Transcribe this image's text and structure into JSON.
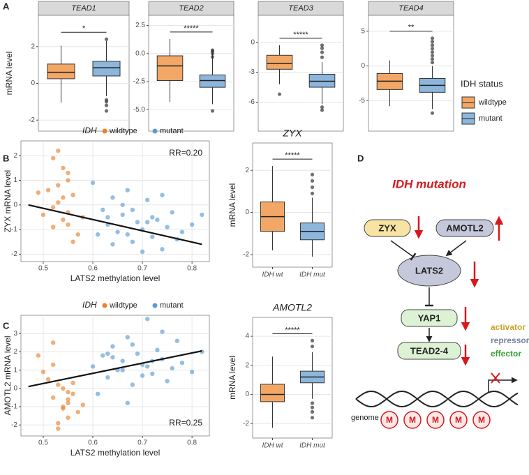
{
  "panel_labels": [
    "A",
    "B",
    "C",
    "D"
  ],
  "chart_data": [
    {
      "type": "boxplot_facets",
      "y_label": "mRNA level",
      "legend_title": "IDH status",
      "groups": [
        {
          "name": "wildtype",
          "color": "#F2A766"
        },
        {
          "name": "mutant",
          "color": "#8DB6DC"
        }
      ],
      "facets": [
        {
          "title": "TEAD1",
          "ylim": [
            -2.6,
            3.7
          ],
          "yticks": [
            -2,
            0,
            2
          ],
          "significance": "*",
          "boxes": [
            {
              "min": -1.05,
              "q1": 0.25,
              "median": 0.6,
              "q3": 1.05,
              "max": 2.05,
              "outliers": []
            },
            {
              "min": -0.7,
              "q1": 0.4,
              "median": 0.85,
              "q3": 1.2,
              "max": 2.3,
              "outliers": [
                2.4,
                -0.9,
                -1.0,
                -1.2,
                -1.5
              ]
            }
          ]
        },
        {
          "title": "TEAD2",
          "ylim": [
            -6.9,
            3.4
          ],
          "yticks": [
            {
              "value": -5,
              "label": "-5.0"
            },
            {
              "value": -2.5,
              "label": "-2.5"
            },
            {
              "value": 0,
              "label": "0.0"
            },
            {
              "value": 2.5,
              "label": "2.5"
            }
          ],
          "significance": "*****",
          "boxes": [
            {
              "min": -4.3,
              "q1": -2.4,
              "median": -1.1,
              "q3": -0.2,
              "max": 1.3,
              "outliers": []
            },
            {
              "min": -4.5,
              "q1": -3.0,
              "median": -2.4,
              "q3": -1.9,
              "max": 0.1,
              "outliers": [
                0.3,
                0.2,
                0,
                -0.3,
                -5.1
              ]
            }
          ]
        },
        {
          "title": "TEAD3",
          "ylim": [
            -8.9,
            2.7
          ],
          "yticks": [
            -6,
            -3,
            0
          ],
          "significance": "*****",
          "boxes": [
            {
              "min": -4.2,
              "q1": -2.7,
              "median": -2.1,
              "q3": -1.3,
              "max": -0.3,
              "outliers": [
                -5.2
              ]
            },
            {
              "min": -6.2,
              "q1": -4.5,
              "median": -3.9,
              "q3": -3.2,
              "max": -2.0,
              "outliers": [
                -0.3,
                -0.6,
                -1.0,
                -1.5,
                -6.5,
                -6.8
              ]
            }
          ]
        },
        {
          "title": "TEAD4",
          "ylim": [
            -9.4,
            7.3
          ],
          "yticks": [
            -5,
            0,
            5
          ],
          "significance": "**",
          "boxes": [
            {
              "min": -5.8,
              "q1": -3.4,
              "median": -2.2,
              "q3": -1.1,
              "max": 0.8,
              "outliers": []
            },
            {
              "min": -6.2,
              "q1": -3.8,
              "median": -2.8,
              "q3": -1.8,
              "max": 0,
              "outliers": [
                0.5,
                1,
                1.5,
                2,
                2.5,
                3,
                3.5,
                4,
                -6.8
              ]
            }
          ]
        }
      ]
    },
    {
      "type": "scatter",
      "legend_title": "IDH",
      "x_label": "LATS2 methylation level",
      "y_label": "ZYX mRNA level",
      "annotation": "RR=0.20",
      "xlim": [
        0.455,
        0.835
      ],
      "ylim": [
        -2.3,
        2.6
      ],
      "xticks": [
        0.5,
        0.6,
        0.7,
        0.8
      ],
      "yticks": [
        -2,
        -1,
        0,
        1,
        2
      ],
      "fit_line": {
        "x": [
          0.47,
          0.82
        ],
        "y": [
          0.0,
          -1.6
        ]
      },
      "series": [
        {
          "name": "wildtype",
          "color": "#E8822F",
          "x": [
            0.52,
            0.53,
            0.54,
            0.55,
            0.51,
            0.56,
            0.53,
            0.55,
            0.54,
            0.52,
            0.57,
            0.5,
            0.55,
            0.53,
            0.56,
            0.54,
            0.52,
            0.55,
            0.58,
            0.49
          ],
          "y": [
            1.9,
            2.2,
            1.5,
            1.0,
            0.6,
            0.4,
            0.1,
            -0.3,
            -0.6,
            -0.9,
            -1.2,
            -0.4,
            1.3,
            0.8,
            -1.5,
            0.3,
            -0.1,
            -0.8,
            -0.5,
            0.5
          ]
        },
        {
          "name": "mutant",
          "color": "#5B9BD5",
          "x": [
            0.6,
            0.62,
            0.63,
            0.64,
            0.65,
            0.66,
            0.67,
            0.68,
            0.69,
            0.7,
            0.71,
            0.72,
            0.73,
            0.74,
            0.75,
            0.76,
            0.77,
            0.78,
            0.8,
            0.82,
            0.61,
            0.64,
            0.66,
            0.68,
            0.7,
            0.72,
            0.74,
            0.63,
            0.67,
            0.71
          ],
          "y": [
            0.9,
            -0.2,
            -0.8,
            0.3,
            -1.1,
            -0.4,
            0.6,
            -1.5,
            -0.7,
            -1.0,
            0.2,
            -1.3,
            -0.6,
            -1.8,
            -0.9,
            -0.3,
            -1.4,
            -1.1,
            -0.8,
            -0.4,
            -1.2,
            -1.6,
            0.0,
            -0.2,
            -1.9,
            -0.5,
            0.4,
            -0.5,
            -1.2,
            -0.7
          ]
        }
      ]
    },
    {
      "type": "boxplot",
      "title": "ZYX",
      "y_label": "mRNA level",
      "categories": [
        "IDH wt",
        "IDH mut"
      ],
      "colors": [
        "#F2A766",
        "#8DB6DC"
      ],
      "ylim": [
        -2.6,
        3.3
      ],
      "yticks": [
        -2,
        0,
        2
      ],
      "significance": "*****",
      "boxes": [
        {
          "min": -1.8,
          "q1": -0.9,
          "median": -0.2,
          "q3": 0.5,
          "max": 2.2,
          "outliers": []
        },
        {
          "min": -2.1,
          "q1": -1.3,
          "median": -0.9,
          "q3": -0.5,
          "max": 0.7,
          "outliers": [
            1.8,
            1.5,
            1.2,
            0.9
          ]
        }
      ]
    },
    {
      "type": "scatter",
      "legend_title": "IDH",
      "x_label": "LATS2 methylation level",
      "y_label": "AMOTL2 mRNA level",
      "annotation": "RR=0.25",
      "xlim": [
        0.455,
        0.835
      ],
      "ylim": [
        -2.6,
        4.0
      ],
      "xticks": [
        0.5,
        0.6,
        0.7,
        0.8
      ],
      "yticks": [
        -2,
        -1,
        0,
        1,
        2,
        3
      ],
      "fit_line": {
        "x": [
          0.47,
          0.82
        ],
        "y": [
          0.1,
          2.05
        ]
      },
      "series": [
        {
          "name": "wildtype",
          "color": "#E8822F",
          "x": [
            0.52,
            0.53,
            0.54,
            0.55,
            0.51,
            0.56,
            0.53,
            0.55,
            0.54,
            0.52,
            0.57,
            0.5,
            0.55,
            0.53,
            0.56,
            0.54,
            0.52,
            0.55,
            0.58,
            0.49
          ],
          "y": [
            -0.5,
            0.2,
            -1.0,
            -1.6,
            0.5,
            -0.3,
            -2.2,
            -0.8,
            0.0,
            2.5,
            -1.3,
            0.9,
            -0.6,
            -1.9,
            0.3,
            -1.1,
            1.3,
            -0.2,
            -0.9,
            1.8
          ]
        },
        {
          "name": "mutant",
          "color": "#5B9BD5",
          "x": [
            0.6,
            0.62,
            0.63,
            0.64,
            0.65,
            0.66,
            0.67,
            0.68,
            0.69,
            0.7,
            0.71,
            0.72,
            0.73,
            0.74,
            0.75,
            0.76,
            0.77,
            0.78,
            0.8,
            0.82,
            0.61,
            0.64,
            0.66,
            0.68,
            0.7,
            0.72,
            0.74,
            0.63,
            0.67,
            0.71
          ],
          "y": [
            1.2,
            1.8,
            0.6,
            2.3,
            1.0,
            1.5,
            2.8,
            0.2,
            1.9,
            1.3,
            3.8,
            0.8,
            2.1,
            1.6,
            0.4,
            1.1,
            2.6,
            1.4,
            0.9,
            2.0,
            -0.3,
            1.7,
            1.0,
            2.4,
            0.7,
            1.5,
            3.1,
            1.9,
            -0.8,
            1.2
          ]
        }
      ]
    },
    {
      "type": "boxplot",
      "title": "AMOTL2",
      "y_label": "mRNA level",
      "categories": [
        "IDH wt",
        "IDH mut"
      ],
      "colors": [
        "#F2A766",
        "#8DB6DC"
      ],
      "ylim": [
        -3.0,
        5.3
      ],
      "yticks": [
        -2,
        0,
        2,
        4
      ],
      "significance": "*****",
      "boxes": [
        {
          "min": -2.3,
          "q1": -0.5,
          "median": 0.0,
          "q3": 0.7,
          "max": 2.6,
          "outliers": []
        },
        {
          "min": -0.3,
          "q1": 0.8,
          "median": 1.2,
          "q3": 1.6,
          "max": 2.9,
          "outliers": [
            3.7,
            3.3,
            -0.6,
            -0.9,
            -1.2,
            -1.6
          ]
        }
      ]
    }
  ],
  "diagram": {
    "title": "IDH mutation",
    "nodes": [
      "ZYX",
      "AMOTL2",
      "LATS2",
      "YAP1",
      "TEAD2-4"
    ],
    "legend": [
      "activator",
      "repressor",
      "effector"
    ],
    "genome_label": "genome",
    "methyl_marks": [
      "M",
      "M",
      "M",
      "M",
      "M"
    ]
  }
}
